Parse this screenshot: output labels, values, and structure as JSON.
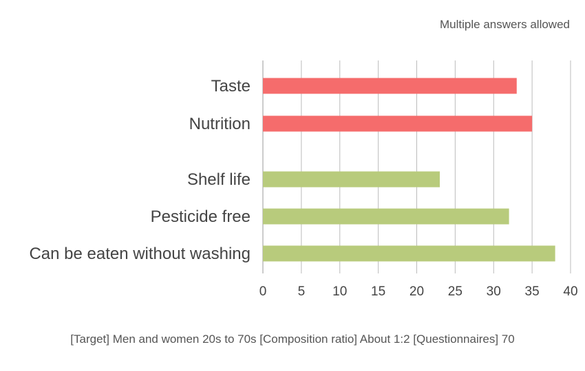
{
  "chart_data": {
    "type": "bar",
    "orientation": "horizontal",
    "note": "Multiple answers allowed",
    "categories": [
      "Taste",
      "Nutrition",
      "Shelf life",
      "Pesticide free",
      "Can be eaten without washing"
    ],
    "values": [
      33,
      35,
      23,
      32,
      38
    ],
    "groups": [
      {
        "color": "#f56c6c",
        "categories": [
          "Taste",
          "Nutrition"
        ]
      },
      {
        "color": "#b8cb7c",
        "categories": [
          "Shelf life",
          "Pesticide free",
          "Can be eaten without washing"
        ]
      }
    ],
    "xlim": [
      0,
      40
    ],
    "xticks": [
      0,
      5,
      10,
      15,
      20,
      25,
      30,
      35,
      40
    ],
    "grid": true,
    "footer": "[Target] Men and women 20s to 70s [Composition ratio] About 1:2 [Questionnaires] 70"
  }
}
